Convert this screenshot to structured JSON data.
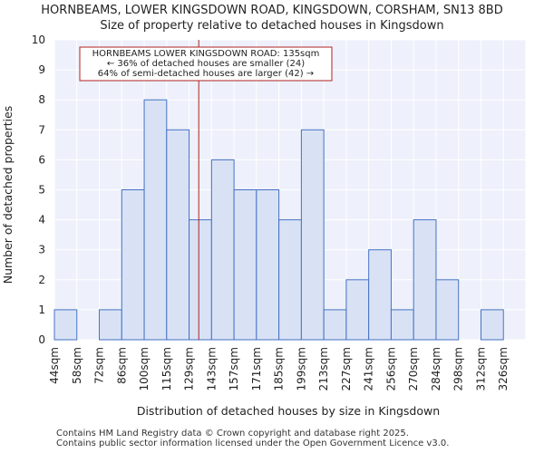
{
  "chart_data": {
    "type": "bar",
    "title": "HORNBEAMS, LOWER KINGSDOWN ROAD, KINGSDOWN, CORSHAM, SN13 8BD",
    "subtitle": "Size of property relative to detached houses in Kingsdown",
    "xlabel": "Distribution of detached houses by size in Kingsdown",
    "ylabel": "Number of detached properties",
    "categories": [
      "44sqm",
      "58sqm",
      "72sqm",
      "86sqm",
      "100sqm",
      "115sqm",
      "129sqm",
      "143sqm",
      "157sqm",
      "171sqm",
      "185sqm",
      "199sqm",
      "213sqm",
      "227sqm",
      "241sqm",
      "256sqm",
      "270sqm",
      "284sqm",
      "298sqm",
      "312sqm",
      "326sqm"
    ],
    "values": [
      1,
      0,
      1,
      5,
      8,
      7,
      4,
      6,
      5,
      5,
      4,
      7,
      1,
      2,
      3,
      1,
      4,
      2,
      0,
      1,
      0
    ],
    "ylim": [
      0,
      10
    ],
    "yticks": [
      0,
      1,
      2,
      3,
      4,
      5,
      6,
      7,
      8,
      9,
      10
    ],
    "grid": true,
    "marker": {
      "value_sqm": 135,
      "bin_position": 6.43,
      "color": "#b22222"
    },
    "annotation": {
      "lines": [
        "HORNBEAMS LOWER KINGSDOWN ROAD: 135sqm",
        "← 36% of detached houses are smaller (24)",
        "64% of semi-detached houses are larger (42) →"
      ],
      "border_color": "#b22222"
    },
    "colors": {
      "bar_fill": "#d9e2f5",
      "bar_stroke": "#4472c4",
      "plot_bg": "#eef1fb",
      "grid": "#ffffff"
    }
  },
  "footer": {
    "line1": "Contains HM Land Registry data © Crown copyright and database right 2025.",
    "line2": "Contains public sector information licensed under the Open Government Licence v3.0."
  }
}
